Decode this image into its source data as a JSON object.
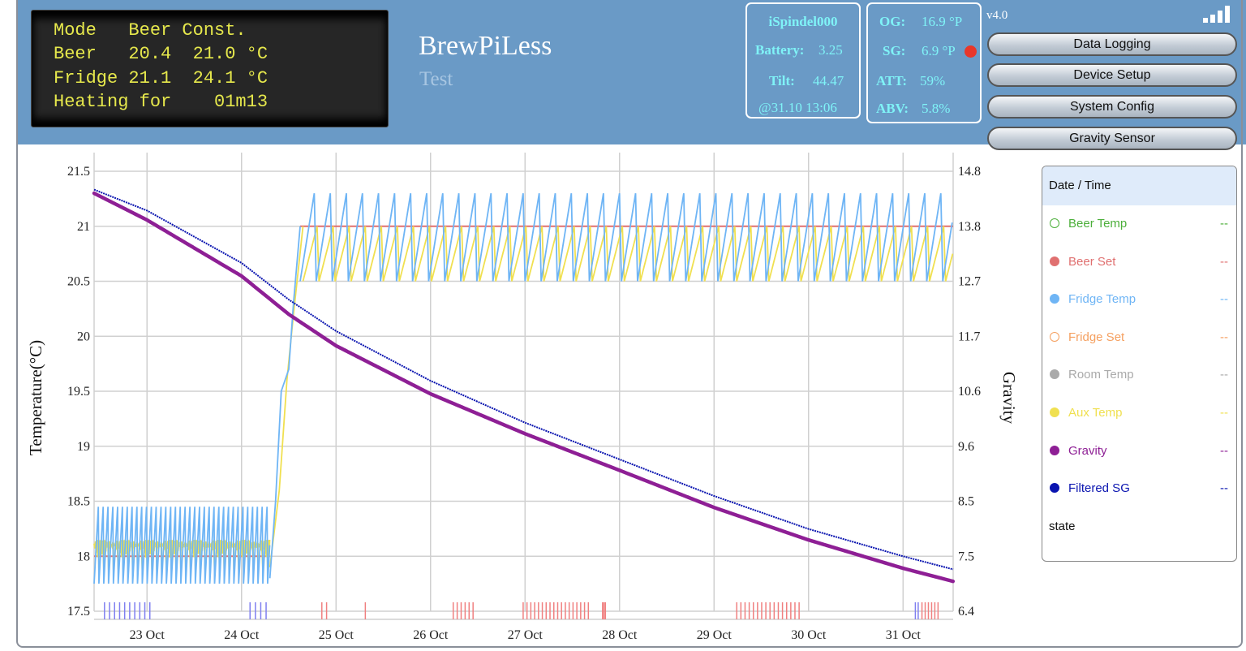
{
  "lcd": {
    "lines": [
      "Mode   Beer Const.",
      "Beer   20.4  21.0 °C",
      "Fridge 21.1  24.1 °C",
      "Heating for    01m13"
    ]
  },
  "app": {
    "title": "BrewPiLess",
    "subtitle": "Test",
    "version": "v4.0"
  },
  "ispindel": {
    "name": "iSpindel000",
    "battery_label": "Battery:",
    "battery": "3.25",
    "tilt_label": "Tilt:",
    "tilt": "44.47",
    "updated": "@31.10 13:06"
  },
  "gravity_info": {
    "og_label": "OG:",
    "og": "16.9 °P",
    "sg_label": "SG:",
    "sg": "6.9 °P",
    "att_label": "ATT:",
    "att": "59%",
    "abv_label": "ABV:",
    "abv": "5.8%",
    "status_color": "#e8372a"
  },
  "buttons": [
    "Data Logging",
    "Device Setup",
    "System Config",
    "Gravity Sensor"
  ],
  "legend": {
    "header": "Date / Time",
    "items": [
      {
        "label": "Beer Temp",
        "value": "--",
        "color": "#4caf3a",
        "hollow": true
      },
      {
        "label": "Beer Set",
        "value": "--",
        "color": "#e07070",
        "hollow": false
      },
      {
        "label": "Fridge Temp",
        "value": "--",
        "color": "#6fb5f5",
        "hollow": false
      },
      {
        "label": "Fridge Set",
        "value": "--",
        "color": "#f5a060",
        "hollow": true
      },
      {
        "label": "Room Temp",
        "value": "--",
        "color": "#aaaaaa",
        "hollow": false
      },
      {
        "label": "Aux Temp",
        "value": "--",
        "color": "#f0e050",
        "hollow": false
      },
      {
        "label": "Gravity",
        "value": "--",
        "color": "#8e1f95",
        "hollow": false
      },
      {
        "label": "Filtered SG",
        "value": "--",
        "color": "#0a14b0",
        "hollow": false
      }
    ],
    "state_label": "state"
  },
  "chart_data": {
    "type": "line",
    "ylabel": "Temperature(°C)",
    "y2label": "Gravity",
    "xlim": [
      22.44,
      31.53
    ],
    "ylim": [
      17.5,
      21.5
    ],
    "y2lim": [
      6.4,
      14.8
    ],
    "grid": true,
    "x_ticks": [
      {
        "v": 23,
        "label": "23 Oct"
      },
      {
        "v": 24,
        "label": "24 Oct"
      },
      {
        "v": 25,
        "label": "25 Oct"
      },
      {
        "v": 26,
        "label": "26 Oct"
      },
      {
        "v": 27,
        "label": "27 Oct"
      },
      {
        "v": 28,
        "label": "28 Oct"
      },
      {
        "v": 29,
        "label": "29 Oct"
      },
      {
        "v": 30,
        "label": "30 Oct"
      },
      {
        "v": 31,
        "label": "31 Oct"
      }
    ],
    "y_ticks": [
      "17.5",
      "18",
      "18.5",
      "19",
      "19.5",
      "20",
      "20.5",
      "21",
      "21.5"
    ],
    "y2_ticks": [
      "6.4",
      "7.5",
      "8.5",
      "9.6",
      "10.6",
      "11.7",
      "12.7",
      "13.8",
      "14.8"
    ],
    "beer_set": [
      [
        [
          22.44,
          18
        ],
        [
          24.3,
          18
        ]
      ],
      [
        [
          24.62,
          21
        ],
        [
          31.53,
          21
        ]
      ]
    ],
    "fridge_temp": {
      "oscillation": [
        {
          "from": 22.44,
          "to": 24.3,
          "min": 17.75,
          "max": 18.45,
          "cycle_days": 0.051
        },
        {
          "from": 24.62,
          "to": 31.53,
          "min": 20.5,
          "max": 21.3,
          "cycle_days": 0.17
        }
      ],
      "ramp": [
        [
          24.3,
          17.8
        ],
        [
          24.36,
          18.5
        ],
        [
          24.42,
          19.5
        ],
        [
          24.5,
          19.7
        ],
        [
          24.55,
          20.3
        ],
        [
          24.62,
          21.0
        ]
      ]
    },
    "aux_temp": {
      "oscillation": [
        {
          "from": 22.44,
          "to": 24.3,
          "min": 17.88,
          "max": 18.15,
          "cycle_days": 0.051
        },
        {
          "from": 24.65,
          "to": 31.53,
          "min": 20.5,
          "max": 21.0,
          "cycle_days": 0.17
        }
      ],
      "ramp": [
        [
          24.3,
          17.9
        ],
        [
          24.4,
          18.6
        ],
        [
          24.48,
          19.6
        ],
        [
          24.55,
          20.2
        ],
        [
          24.65,
          21.0
        ]
      ]
    },
    "gravity": [
      [
        22.44,
        14.38
      ],
      [
        23,
        13.87
      ],
      [
        24,
        12.8
      ],
      [
        24.5,
        12.07
      ],
      [
        25,
        11.47
      ],
      [
        26,
        10.55
      ],
      [
        27,
        9.79
      ],
      [
        28,
        9.09
      ],
      [
        29,
        8.38
      ],
      [
        30,
        7.76
      ],
      [
        31,
        7.22
      ],
      [
        31.53,
        6.97
      ]
    ],
    "filtered_sg": [
      [
        22.44,
        14.45
      ],
      [
        23,
        14.05
      ],
      [
        24,
        13.05
      ],
      [
        24.5,
        12.35
      ],
      [
        25,
        11.75
      ],
      [
        26,
        10.8
      ],
      [
        27,
        10.0
      ],
      [
        28,
        9.3
      ],
      [
        29,
        8.6
      ],
      [
        30,
        7.97
      ],
      [
        31,
        7.45
      ],
      [
        31.53,
        7.2
      ]
    ],
    "state_marks": [
      {
        "from": 22.55,
        "to": 23.03,
        "count": 10,
        "color": "#7f7ff0"
      },
      {
        "from": 24.09,
        "to": 24.26,
        "count": 4,
        "color": "#7f7ff0"
      },
      {
        "from": 24.85,
        "to": 24.9,
        "count": 2,
        "color": "#f08080"
      },
      {
        "from": 25.31,
        "to": 25.31,
        "count": 1,
        "color": "#f08080"
      },
      {
        "from": 26.24,
        "to": 26.45,
        "count": 6,
        "color": "#f08080"
      },
      {
        "from": 26.98,
        "to": 27.67,
        "count": 18,
        "color": "#f08080"
      },
      {
        "from": 27.82,
        "to": 27.85,
        "count": 3,
        "color": "#f08080"
      },
      {
        "from": 29.24,
        "to": 29.9,
        "count": 16,
        "color": "#f08080"
      },
      {
        "from": 31.13,
        "to": 31.16,
        "count": 2,
        "color": "#7f7ff0"
      },
      {
        "from": 31.2,
        "to": 31.37,
        "count": 6,
        "color": "#f08080"
      }
    ]
  }
}
